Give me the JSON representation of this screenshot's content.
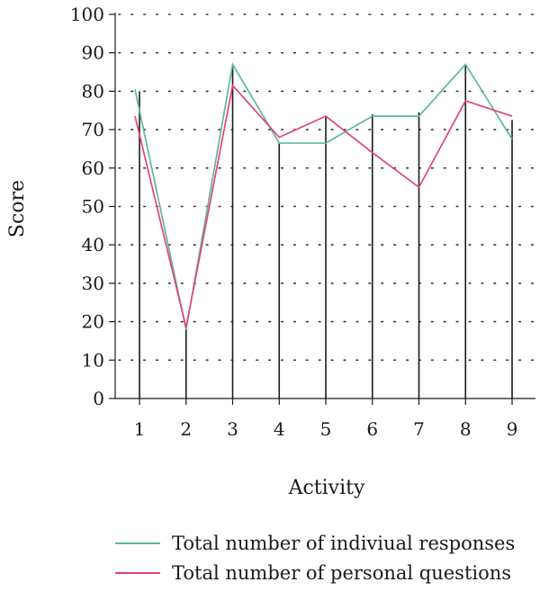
{
  "chart_data": {
    "type": "line",
    "xlabel": "Activity",
    "ylabel": "Score",
    "categories": [
      "1",
      "2",
      "3",
      "4",
      "5",
      "6",
      "7",
      "8",
      "9"
    ],
    "ylim": [
      0,
      100
    ],
    "yticks": [
      "0",
      "10",
      "20",
      "30",
      "40",
      "50",
      "60",
      "70",
      "80",
      "90",
      "100"
    ],
    "grid": "dotted horizontal",
    "legend_position": "bottom",
    "series": [
      {
        "name": "Total number of indiviual responses",
        "color": "#5fb89a",
        "values": [
          80.5,
          18,
          87,
          66.5,
          66.5,
          73.5,
          73.5,
          87,
          67.5
        ]
      },
      {
        "name": "Total number of personal questions",
        "color": "#e0457a",
        "values": [
          73.5,
          18.5,
          81.5,
          68,
          73.5,
          64,
          55,
          77.5,
          73.5
        ]
      }
    ],
    "bar_values": [
      80,
      18,
      87,
      66.5,
      73.5,
      74,
      74.5,
      87,
      72.5
    ]
  }
}
